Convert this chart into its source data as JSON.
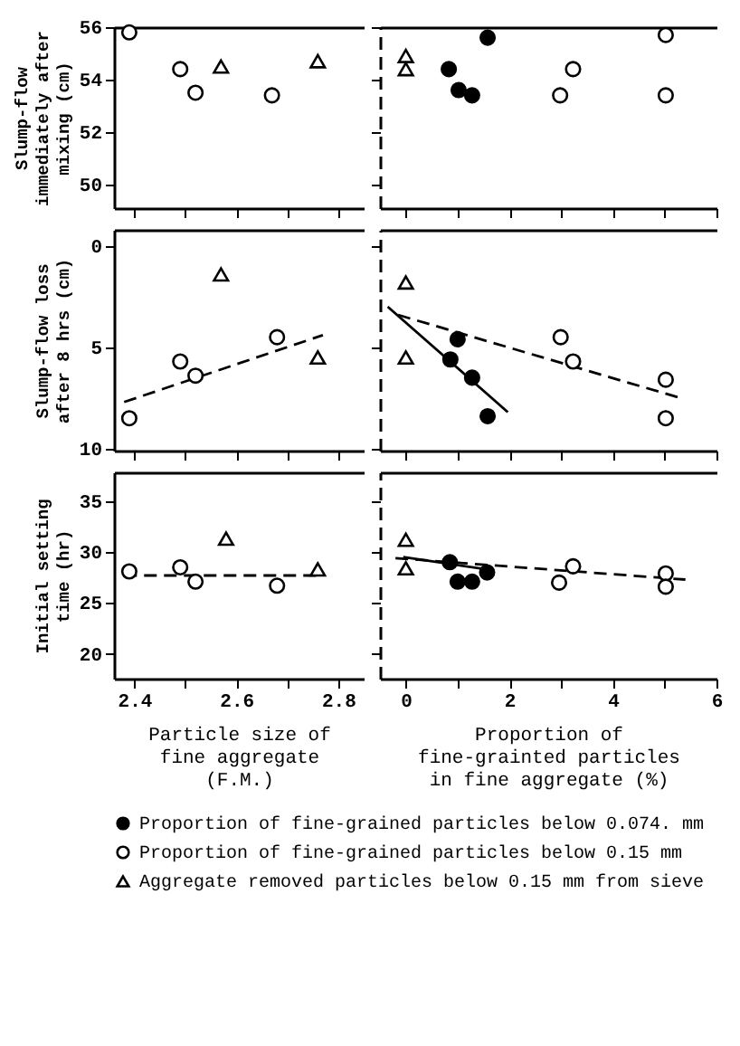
{
  "chart_data": [
    {
      "type": "scatter",
      "ylabel": "Slump-flow immediately after mixing (cm)",
      "xlim": [
        2.36,
        2.85
      ],
      "xticks": [
        2.4,
        {
          "value": 2.5,
          "label": null
        },
        2.6,
        {
          "value": 2.7,
          "label": null
        },
        2.8
      ],
      "ylim": [
        49.1,
        56
      ],
      "yticks": [
        50,
        52,
        54,
        56
      ],
      "tick_labels": "y",
      "series": [
        {
          "marker": "circle",
          "color": "#ffffff",
          "x": [
            2.39,
            2.49,
            2.52,
            2.67
          ],
          "values": [
            55.8,
            54.4,
            53.5,
            53.4
          ]
        },
        {
          "marker": "triangle",
          "color": "#ffffff",
          "x": [
            2.57,
            2.76
          ],
          "values": [
            54.5,
            54.7
          ]
        }
      ]
    },
    {
      "type": "scatter",
      "xlim": [
        -0.5,
        6
      ],
      "xticks": [
        0,
        {
          "value": 1,
          "label": null
        },
        2,
        {
          "value": 3,
          "label": null
        },
        4,
        {
          "value": 5,
          "label": null
        },
        6
      ],
      "ylim": [
        49.1,
        56
      ],
      "yticks": [
        50,
        52,
        54,
        56
      ],
      "tick_labels": false,
      "series": [
        {
          "marker": "circle",
          "color": "#000000",
          "x": [
            0.83,
            1.02,
            1.28,
            1.58
          ],
          "values": [
            54.4,
            53.6,
            53.4,
            55.6
          ]
        },
        {
          "marker": "circle",
          "color": "#ffffff",
          "x": [
            2.98,
            3.23,
            5.02,
            5.02
          ],
          "values": [
            53.4,
            54.4,
            55.7,
            53.4
          ]
        },
        {
          "marker": "triangle",
          "color": "#ffffff",
          "x": [
            0,
            0
          ],
          "values": [
            54.9,
            54.4
          ]
        }
      ]
    },
    {
      "type": "scatter",
      "ylabel": "Slump-flow loss after 8 hrs (cm)",
      "xlim": [
        2.36,
        2.85
      ],
      "xticks": [
        2.4,
        {
          "value": 2.5,
          "label": null
        },
        2.6,
        {
          "value": 2.7,
          "label": null
        },
        2.8
      ],
      "ylim": [
        10.1,
        -0.8
      ],
      "yticks": [
        0,
        5,
        10
      ],
      "tick_labels": "y",
      "series": [
        {
          "type": "line",
          "line_style": "dashed",
          "color": "#000000",
          "x": [
            2.38,
            2.77
          ],
          "values": [
            7.7,
            4.4
          ]
        },
        {
          "marker": "circle",
          "color": "#ffffff",
          "x": [
            2.39,
            2.49,
            2.52,
            2.68
          ],
          "values": [
            8.5,
            5.7,
            6.4,
            4.5
          ]
        },
        {
          "marker": "triangle",
          "color": "#ffffff",
          "x": [
            2.57,
            2.76
          ],
          "values": [
            1.4,
            5.5
          ]
        }
      ]
    },
    {
      "type": "scatter",
      "xlim": [
        -0.5,
        6
      ],
      "xticks": [
        0,
        {
          "value": 1,
          "label": null
        },
        2,
        {
          "value": 3,
          "label": null
        },
        4,
        {
          "value": 5,
          "label": null
        },
        6
      ],
      "ylim": [
        10.1,
        -0.8
      ],
      "yticks": [
        0,
        5,
        10
      ],
      "tick_labels": false,
      "series": [
        {
          "type": "line",
          "line_style": "solid",
          "color": "#000000",
          "x": [
            -0.35,
            1.97
          ],
          "values": [
            3.0,
            8.2
          ]
        },
        {
          "type": "line",
          "line_style": "dashed",
          "color": "#000000",
          "x": [
            -0.15,
            5.3
          ],
          "values": [
            3.4,
            7.5
          ]
        },
        {
          "marker": "circle",
          "color": "#000000",
          "x": [
            0.86,
            1.0,
            1.28,
            1.58
          ],
          "values": [
            5.6,
            4.6,
            6.5,
            8.4
          ]
        },
        {
          "marker": "circle",
          "color": "#ffffff",
          "x": [
            2.99,
            3.23,
            5.02,
            5.02
          ],
          "values": [
            4.5,
            5.7,
            6.6,
            8.5
          ]
        },
        {
          "marker": "triangle",
          "color": "#ffffff",
          "x": [
            0,
            0
          ],
          "values": [
            1.8,
            5.5
          ]
        }
      ]
    },
    {
      "type": "scatter",
      "ylabel": "Initial setting time (hr)",
      "xlabel": "Particle size of fine aggregate (F.M.)",
      "xlim": [
        2.36,
        2.85
      ],
      "xticks": [
        2.4,
        {
          "value": 2.5,
          "label": null
        },
        2.6,
        {
          "value": 2.7,
          "label": null
        },
        2.8
      ],
      "ylim": [
        17.6,
        37.8
      ],
      "yticks": [
        20,
        25,
        30,
        35
      ],
      "series": [
        {
          "type": "line",
          "line_style": "dashed",
          "color": "#000000",
          "x": [
            2.38,
            2.77
          ],
          "values": [
            27.7,
            27.7
          ]
        },
        {
          "marker": "circle",
          "color": "#ffffff",
          "x": [
            2.39,
            2.49,
            2.52,
            2.68
          ],
          "values": [
            28.1,
            28.5,
            27.1,
            26.7
          ]
        },
        {
          "marker": "triangle",
          "color": "#ffffff",
          "x": [
            2.58,
            2.76
          ],
          "values": [
            31.3,
            28.3
          ]
        }
      ]
    },
    {
      "type": "scatter",
      "xlabel": "Proportion of fine-grainted particles in fine aggregate (%)",
      "xlim": [
        -0.5,
        6
      ],
      "xticks": [
        0,
        {
          "value": 1,
          "label": null
        },
        2,
        {
          "value": 3,
          "label": null
        },
        4,
        {
          "value": 5,
          "label": null
        },
        6
      ],
      "ylim": [
        17.6,
        37.8
      ],
      "yticks": [
        20,
        25,
        30,
        35
      ],
      "tick_labels": "x",
      "legend": "bottom",
      "series": [
        {
          "type": "line",
          "line_style": "solid",
          "color": "#000000",
          "x": [
            -0.05,
            1.7
          ],
          "values": [
            29.5,
            28.2
          ]
        },
        {
          "type": "line",
          "line_style": "dashed",
          "color": "#000000",
          "x": [
            -0.2,
            5.4
          ],
          "values": [
            29.4,
            27.3
          ]
        },
        {
          "name": "Proportion of fine-grained particles below 0.074. mm",
          "marker": "circle",
          "color": "#000000",
          "x": [
            0.85,
            1.0,
            1.28,
            1.57
          ],
          "values": [
            29.0,
            27.1,
            27.1,
            28.0
          ]
        },
        {
          "name": "Proportion of fine-grained particles below 0.15 mm",
          "marker": "circle",
          "color": "#ffffff",
          "x": [
            2.96,
            3.23,
            5.02,
            5.02
          ],
          "values": [
            27.0,
            28.6,
            27.9,
            26.6
          ]
        },
        {
          "name": "Aggregate removed particles below 0.15 mm from sieve",
          "marker": "triangle",
          "color": "#ffffff",
          "x": [
            0,
            0
          ],
          "values": [
            31.2,
            28.4
          ]
        }
      ]
    }
  ]
}
